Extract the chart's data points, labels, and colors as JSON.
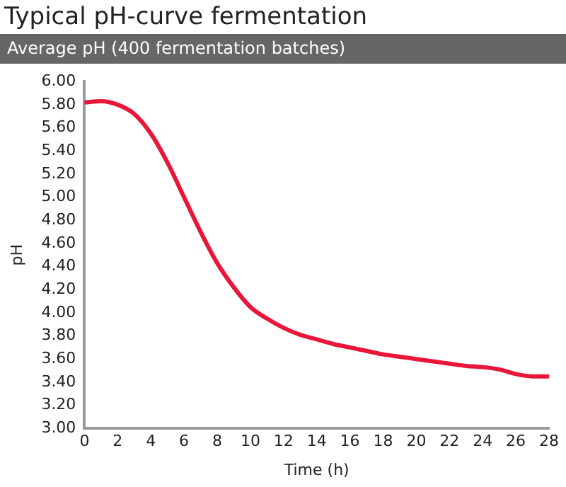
{
  "chart_data": {
    "type": "line",
    "title": "Typical pH-curve fermentation",
    "subtitle": "Average pH (400 fermentation batches)",
    "xlabel": "Time (h)",
    "ylabel": "pH",
    "x": [
      0,
      1,
      2,
      3,
      4,
      5,
      6,
      7,
      8,
      9,
      10,
      11,
      12,
      13,
      14,
      15,
      16,
      17,
      18,
      19,
      20,
      21,
      22,
      23,
      24,
      25,
      26,
      27,
      28
    ],
    "series": [
      {
        "color": "#e8173a",
        "values": [
          5.82,
          5.83,
          5.8,
          5.72,
          5.55,
          5.3,
          5.0,
          4.7,
          4.43,
          4.22,
          4.05,
          3.95,
          3.87,
          3.81,
          3.77,
          3.73,
          3.7,
          3.67,
          3.64,
          3.62,
          3.6,
          3.58,
          3.56,
          3.54,
          3.53,
          3.51,
          3.47,
          3.45,
          3.45
        ]
      }
    ],
    "xlim": [
      0,
      28
    ],
    "xticks": [
      0,
      2,
      4,
      6,
      8,
      10,
      12,
      14,
      16,
      18,
      20,
      22,
      24,
      26,
      28
    ],
    "ylim": [
      3,
      6
    ],
    "yticks": [
      {
        "value": 3,
        "label": "3.00"
      },
      {
        "value": 3.2,
        "label": "3.20"
      },
      {
        "value": 3.4,
        "label": "3.40"
      },
      {
        "value": 3.6,
        "label": "3.60"
      },
      {
        "value": 3.8,
        "label": "3.80"
      },
      {
        "value": 4,
        "label": "4.00"
      },
      {
        "value": 4.2,
        "label": "4.20"
      },
      {
        "value": 4.4,
        "label": "4.40"
      },
      {
        "value": 4.6,
        "label": "4.60"
      },
      {
        "value": 4.8,
        "label": "4.80"
      },
      {
        "value": 5,
        "label": "5.00"
      },
      {
        "value": 5.2,
        "label": "5.20"
      },
      {
        "value": 5.4,
        "label": "5.40"
      },
      {
        "value": 5.6,
        "label": "5.60"
      },
      {
        "value": 5.8,
        "label": "5.80"
      },
      {
        "value": 6,
        "label": "6.00"
      }
    ],
    "grid": false,
    "legend": false,
    "marker": "none",
    "line_style": "solid"
  }
}
